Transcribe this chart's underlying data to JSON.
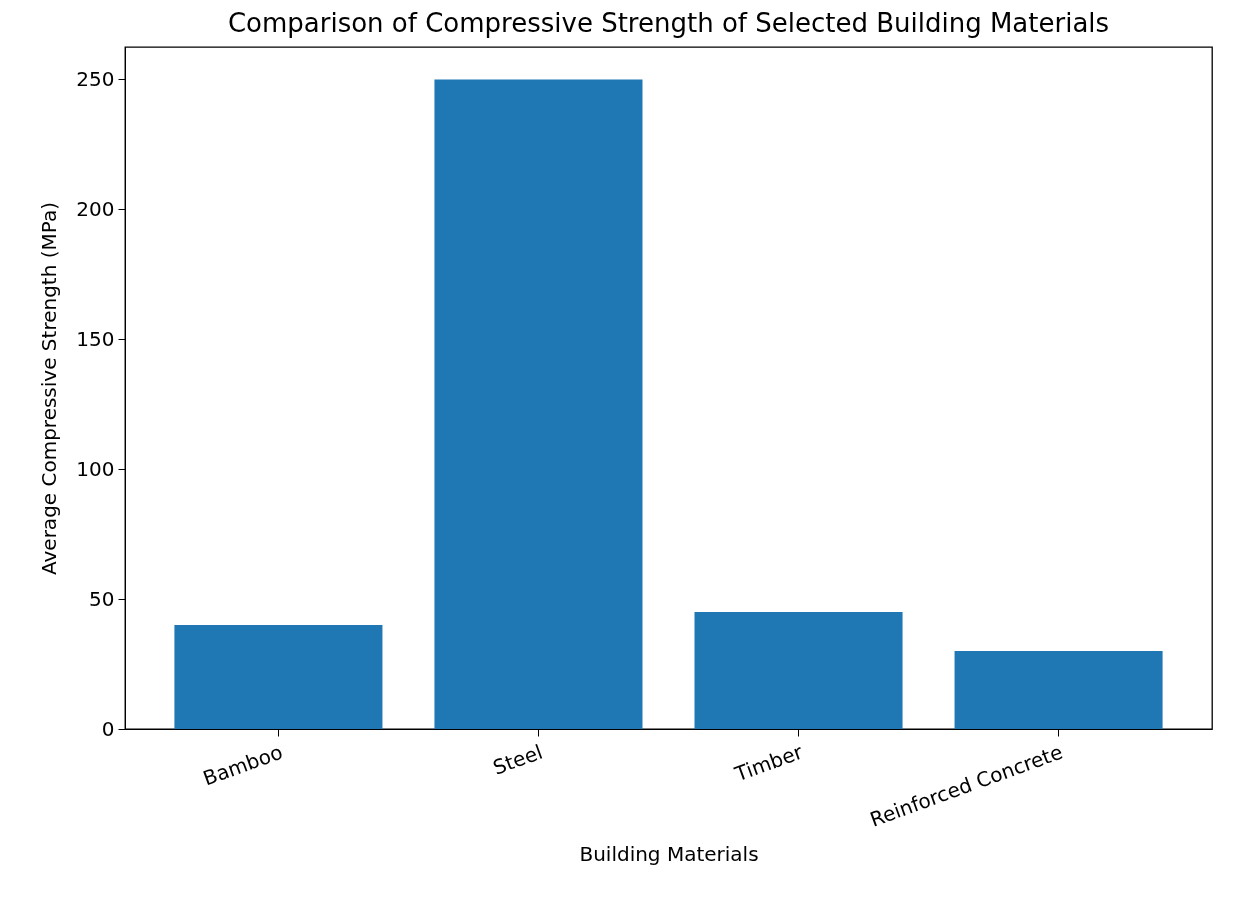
{
  "chart_data": {
    "type": "bar",
    "title": "Comparison of Compressive Strength of Selected Building Materials",
    "xlabel": "Building Materials",
    "ylabel": "Average Compressive Strength (MPa)",
    "categories": [
      "Bamboo",
      "Steel",
      "Timber",
      "Reinforced Concrete"
    ],
    "values": [
      40,
      250,
      45,
      30
    ],
    "color": "#1f77b4",
    "ylim": [
      0,
      262.5
    ],
    "yticks": [
      0,
      50,
      100,
      150,
      200,
      250
    ],
    "grid": false
  }
}
